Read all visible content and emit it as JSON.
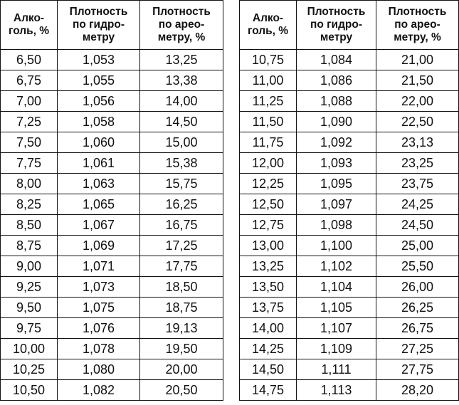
{
  "headers": [
    [
      "Алко-",
      "голь, %"
    ],
    [
      "Плотность",
      "по гидро-",
      "метру"
    ],
    [
      "Плотность",
      "по арео-",
      "метру, %"
    ]
  ],
  "left_rows": [
    [
      "6,50",
      "1,053",
      "13,25"
    ],
    [
      "6,75",
      "1,055",
      "13,38"
    ],
    [
      "7,00",
      "1,056",
      "14,00"
    ],
    [
      "7,25",
      "1,058",
      "14,50"
    ],
    [
      "7,50",
      "1,060",
      "15,00"
    ],
    [
      "7,75",
      "1,061",
      "15,38"
    ],
    [
      "8,00",
      "1,063",
      "15,75"
    ],
    [
      "8,25",
      "1,065",
      "16,25"
    ],
    [
      "8,50",
      "1,067",
      "16,75"
    ],
    [
      "8,75",
      "1,069",
      "17,25"
    ],
    [
      "9,00",
      "1,071",
      "17,75"
    ],
    [
      "9,25",
      "1,073",
      "18,50"
    ],
    [
      "9,50",
      "1,075",
      "18,75"
    ],
    [
      "9,75",
      "1,076",
      "19,13"
    ],
    [
      "10,00",
      "1,078",
      "19,50"
    ],
    [
      "10,25",
      "1,080",
      "20,00"
    ],
    [
      "10,50",
      "1,082",
      "20,50"
    ]
  ],
  "right_rows": [
    [
      "10,75",
      "1,084",
      "21,00"
    ],
    [
      "11,00",
      "1,086",
      "21,50"
    ],
    [
      "11,25",
      "1,088",
      "22,00"
    ],
    [
      "11,50",
      "1,090",
      "22,50"
    ],
    [
      "11,75",
      "1,092",
      "23,13"
    ],
    [
      "12,00",
      "1,093",
      "23,25"
    ],
    [
      "12,25",
      "1,095",
      "23,75"
    ],
    [
      "12,50",
      "1,097",
      "24,25"
    ],
    [
      "12,75",
      "1,098",
      "24,50"
    ],
    [
      "13,00",
      "1,100",
      "25,00"
    ],
    [
      "13,25",
      "1,102",
      "25,50"
    ],
    [
      "13,50",
      "1,104",
      "26,00"
    ],
    [
      "13,75",
      "1,105",
      "26,25"
    ],
    [
      "14,00",
      "1,107",
      "26,75"
    ],
    [
      "14,25",
      "1,109",
      "27,25"
    ],
    [
      "14,50",
      "1,111",
      "27,75"
    ],
    [
      "14,75",
      "1,113",
      "28,20"
    ]
  ]
}
